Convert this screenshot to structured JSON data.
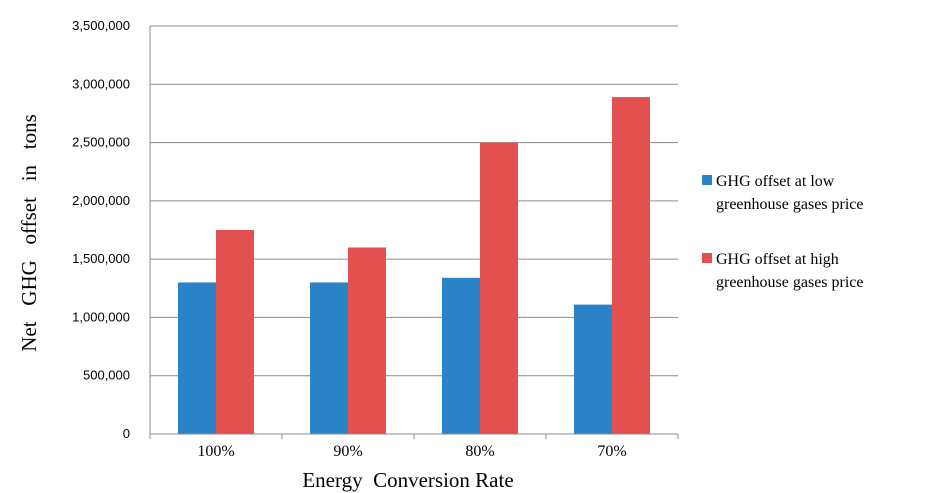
{
  "chart_data": {
    "type": "bar",
    "categories": [
      "100%",
      "90%",
      "80%",
      "70%"
    ],
    "series": [
      {
        "name": "GHG offset at low greenhouse gases price",
        "legend_lines": [
          "GHG offset at low",
          "greenhouse gases price"
        ],
        "color": "#2a83c6",
        "values": [
          1300000,
          1300000,
          1340000,
          1110000
        ]
      },
      {
        "name": "GHG offset at high greenhouse gases price",
        "legend_lines": [
          "GHG offset at high",
          "greenhouse gases price"
        ],
        "color": "#e25050",
        "values": [
          1750000,
          1600000,
          2500000,
          2890000
        ]
      }
    ],
    "yticks": [
      0,
      500000,
      1000000,
      1500000,
      2000000,
      2500000,
      3000000,
      3500000
    ],
    "ytick_labels": [
      "0",
      "500,000",
      "1,000,000",
      "1,500,000",
      "2,000,000",
      "2,500,000",
      "3,000,000",
      "3,500,000"
    ],
    "ylim": [
      0,
      3500000
    ],
    "xlabel": "Energy  Conversion Rate",
    "ylabel": "Net   GHG   offset   in   tons",
    "grid": true,
    "legend_position": "right"
  }
}
